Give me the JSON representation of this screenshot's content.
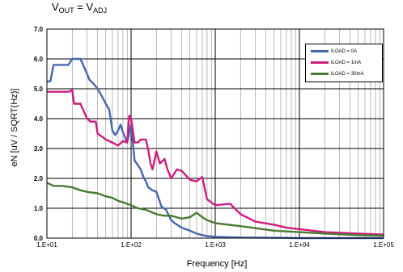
{
  "title": {
    "main": "V",
    "sub1": "OUT",
    "mid": " = V",
    "sub2": "ADJ"
  },
  "chart_data": {
    "type": "line",
    "xlabel": "Frequency [Hz]",
    "ylabel": "eN [uV / SQRT(Hz)]",
    "x_scale": "log",
    "xlim": [
      10,
      100000
    ],
    "ylim": [
      0,
      7
    ],
    "x_tick_labels": [
      "1.E+01",
      "1.E+02",
      "1.E+03",
      "1.E+04",
      "1.E+05"
    ],
    "y_tick_labels": [
      "0.0",
      "1.0",
      "2.0",
      "3.0",
      "4.0",
      "5.0",
      "6.0",
      "7.0"
    ],
    "grid": true,
    "legend_position": "top-right",
    "series": [
      {
        "name": "ILOAD = 0A",
        "color": "#4467b0",
        "x": [
          10,
          11,
          12,
          12.5,
          15,
          18,
          20,
          22,
          25,
          30,
          32,
          35,
          40,
          45,
          50,
          55,
          60,
          65,
          70,
          75,
          80,
          90,
          100,
          110,
          120,
          130,
          140,
          150,
          160,
          180,
          200,
          230,
          260,
          300,
          330,
          400,
          500,
          600,
          700,
          800,
          1000,
          2000,
          5000,
          10000,
          100000
        ],
        "y": [
          5.25,
          5.25,
          5.8,
          5.8,
          5.8,
          5.8,
          6.0,
          6.0,
          6.0,
          5.5,
          5.3,
          5.2,
          5.0,
          4.75,
          4.5,
          4.3,
          3.6,
          3.45,
          3.6,
          3.8,
          3.55,
          3.2,
          3.8,
          2.6,
          2.45,
          2.3,
          2.05,
          1.9,
          1.7,
          1.6,
          1.55,
          1.05,
          0.95,
          0.6,
          0.5,
          0.35,
          0.25,
          0.15,
          0.1,
          0.07,
          0.04,
          0.02,
          0.01,
          0.0,
          0.0
        ]
      },
      {
        "name": "ILOAD = 1mA",
        "color": "#cf1c7d",
        "x": [
          10,
          12,
          15,
          18,
          20,
          21,
          25,
          30,
          33,
          38,
          40,
          45,
          50,
          60,
          70,
          80,
          90,
          95,
          100,
          110,
          120,
          130,
          150,
          160,
          170,
          180,
          200,
          220,
          250,
          270,
          300,
          350,
          400,
          500,
          600,
          700,
          800,
          1000,
          1500,
          2000,
          3000,
          5000,
          7000,
          10000,
          20000,
          50000,
          100000
        ],
        "y": [
          4.9,
          4.9,
          4.9,
          4.9,
          4.95,
          4.5,
          4.5,
          4.0,
          3.9,
          3.9,
          3.5,
          3.4,
          3.3,
          3.2,
          3.1,
          3.25,
          3.2,
          4.1,
          4.0,
          3.2,
          3.2,
          3.3,
          3.3,
          2.95,
          2.5,
          2.3,
          2.9,
          2.5,
          2.65,
          2.3,
          2.0,
          2.3,
          2.25,
          1.95,
          1.9,
          2.05,
          1.3,
          1.1,
          1.15,
          0.8,
          0.55,
          0.45,
          0.35,
          0.3,
          0.2,
          0.15,
          0.12
        ]
      },
      {
        "name": "ILOAD = 30mA",
        "color": "#4a7a32",
        "x": [
          10,
          11,
          12,
          15,
          20,
          25,
          30,
          40,
          50,
          60,
          70,
          80,
          100,
          120,
          150,
          200,
          250,
          300,
          400,
          500,
          600,
          700,
          800,
          900,
          1000,
          2000,
          5000,
          10000,
          20000,
          50000,
          100000
        ],
        "y": [
          1.85,
          1.8,
          1.75,
          1.75,
          1.7,
          1.6,
          1.55,
          1.5,
          1.4,
          1.35,
          1.25,
          1.2,
          1.1,
          1.0,
          0.95,
          0.8,
          0.75,
          0.75,
          0.65,
          0.7,
          0.85,
          0.7,
          0.6,
          0.55,
          0.5,
          0.4,
          0.25,
          0.2,
          0.15,
          0.1,
          0.08
        ]
      }
    ]
  }
}
